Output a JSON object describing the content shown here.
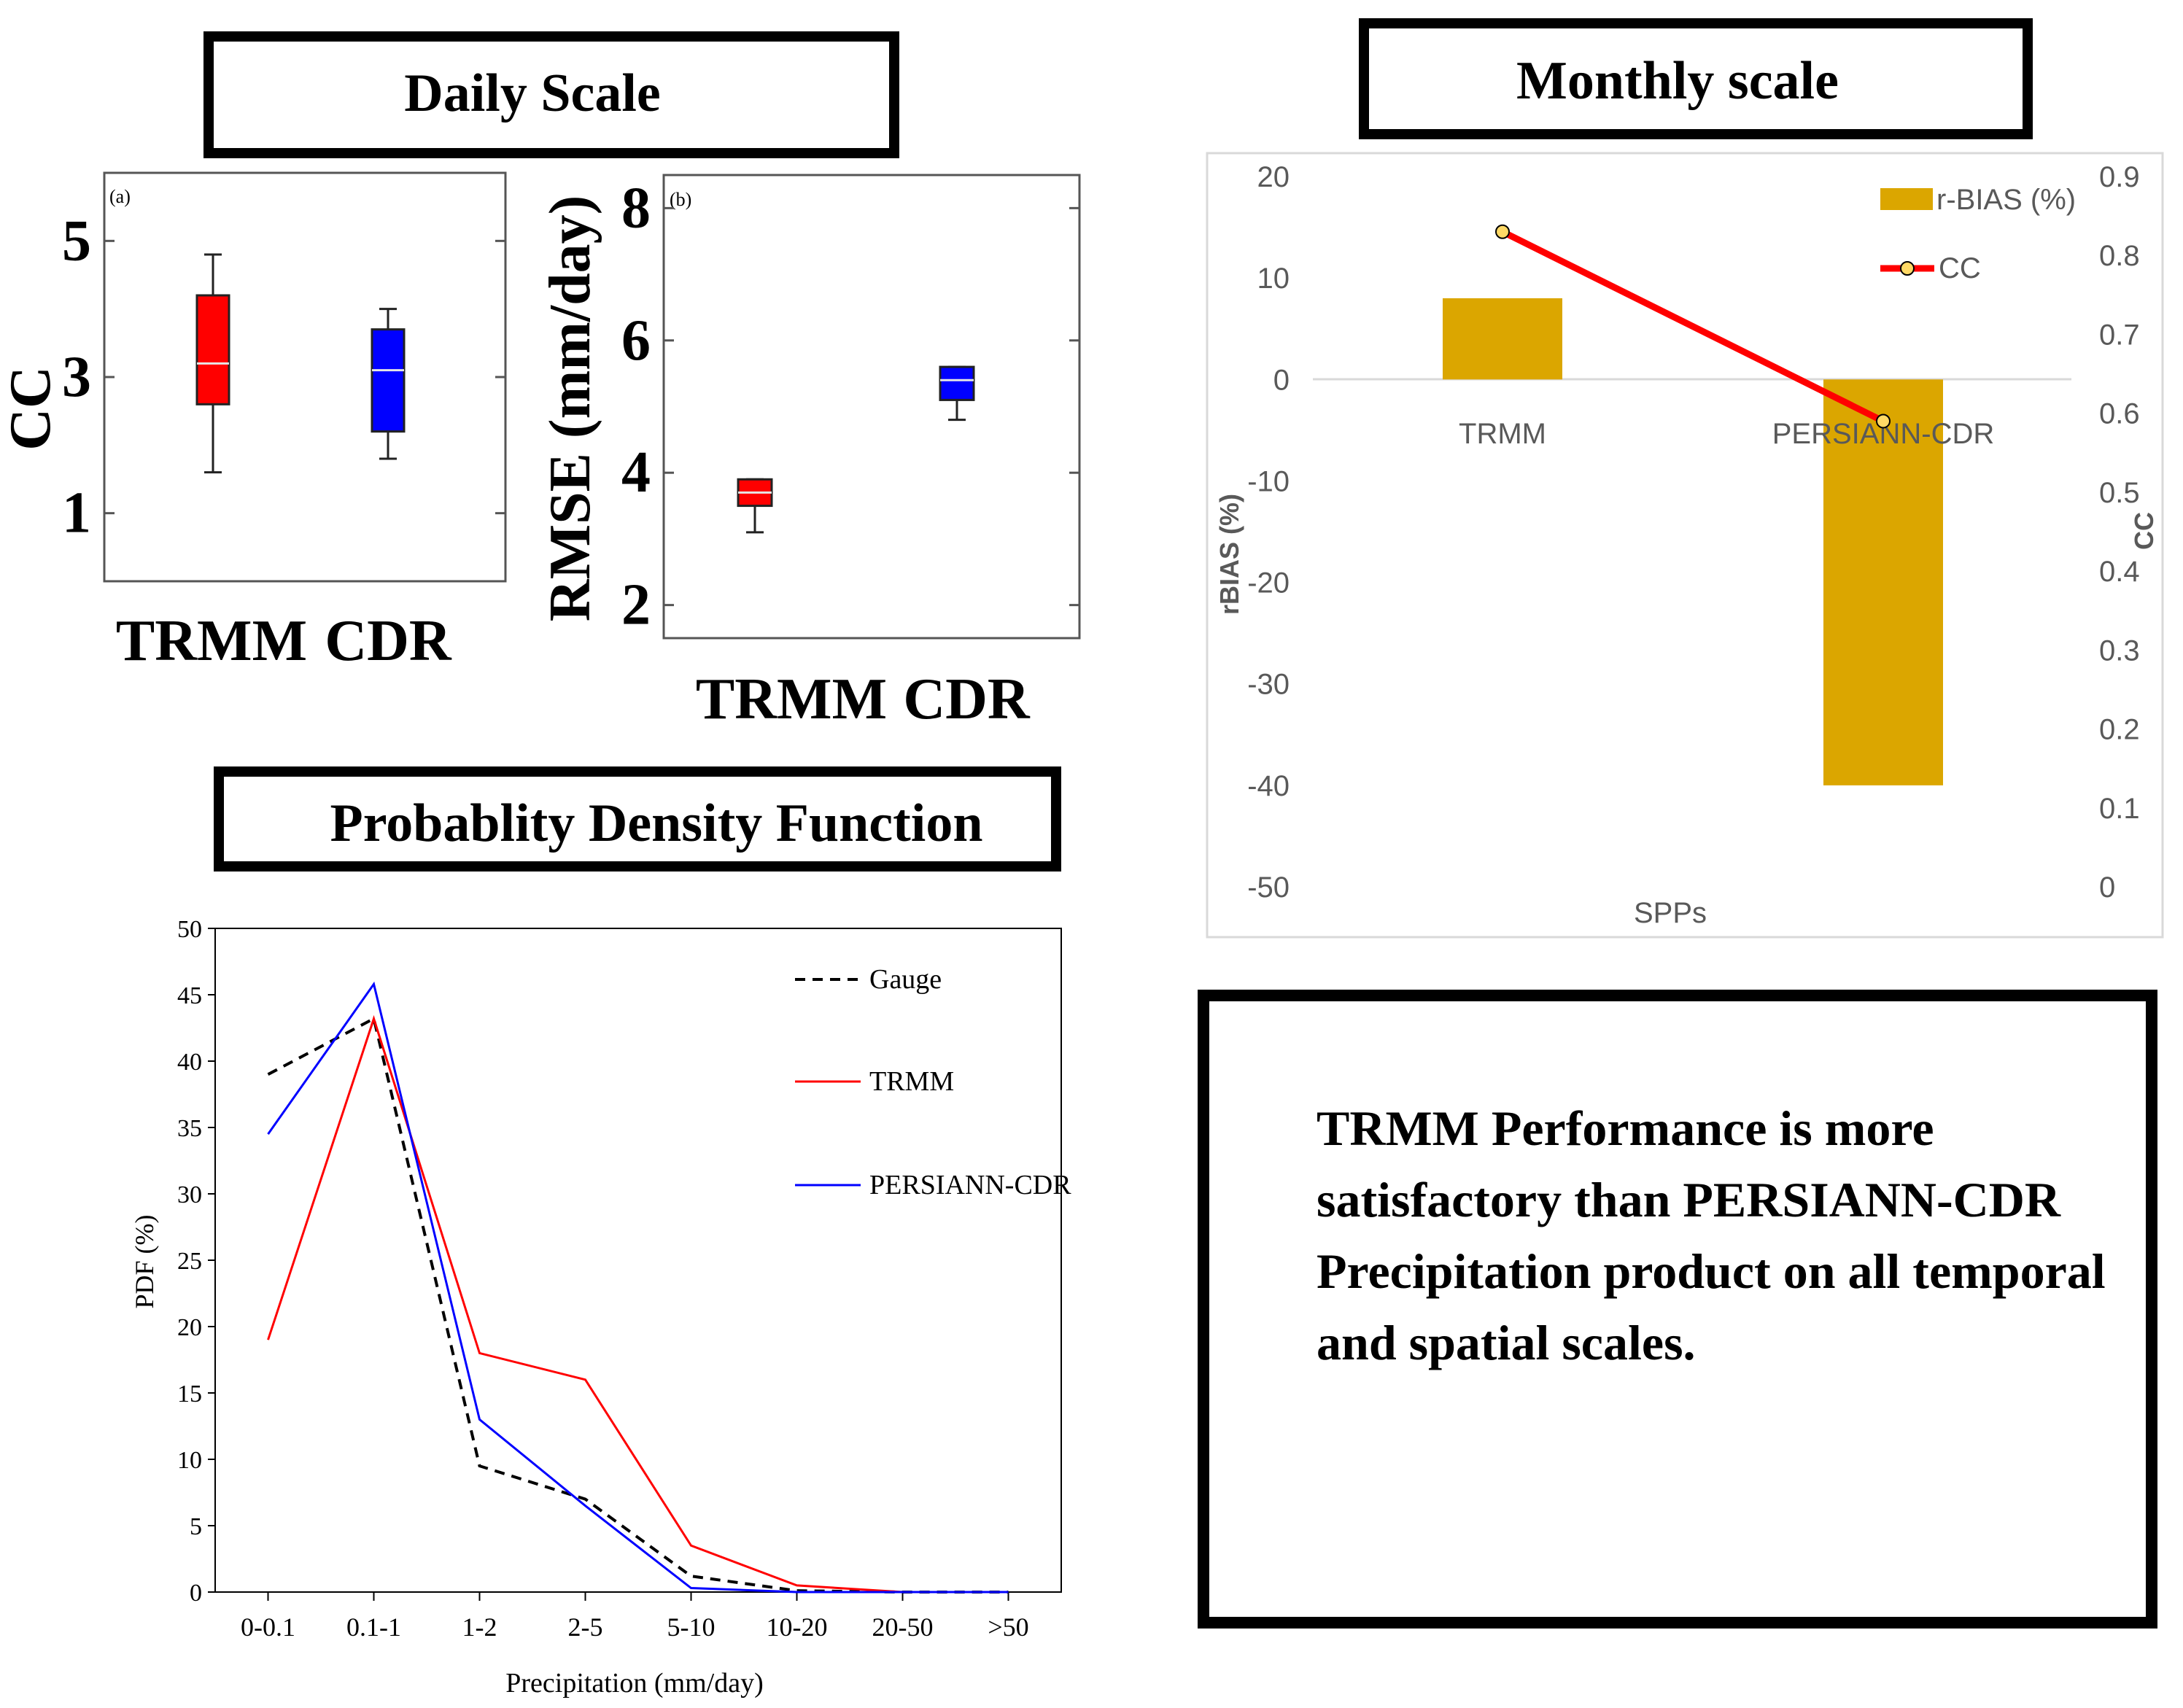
{
  "panels": {
    "daily_title": "Daily Scale",
    "monthly_title": "Monthly scale",
    "pdf_title": "Probablity Density Function",
    "conclusion": [
      "TRMM Performance is more",
      "satisfactory than PERSIANN-CDR",
      "Precipitation product on all temporal",
      "and spatial scales."
    ]
  },
  "colors": {
    "red": "#ff0000",
    "blue": "#0000ff",
    "gold": "#dba600",
    "black": "#000000"
  },
  "chart_data": [
    {
      "id": "cc_box",
      "type": "box",
      "panel_label": "(a)",
      "ylabel": "CC",
      "ylim": [
        0,
        6
      ],
      "yticks": [
        1,
        3,
        5
      ],
      "categories": [
        "TRMM",
        "CDR"
      ],
      "boxes": [
        {
          "name": "TRMM",
          "color": "#ff0000",
          "min": 1.6,
          "q1": 2.6,
          "median": 3.2,
          "q3": 4.2,
          "max": 4.8
        },
        {
          "name": "CDR",
          "color": "#0000ff",
          "min": 1.8,
          "q1": 2.2,
          "median": 3.1,
          "q3": 3.7,
          "max": 4.0
        }
      ]
    },
    {
      "id": "rmse_box",
      "type": "box",
      "panel_label": "(b)",
      "ylabel": "RMSE (mm/day)",
      "ylim": [
        1.5,
        8.5
      ],
      "yticks": [
        2,
        4,
        6,
        8
      ],
      "categories": [
        "TRMM",
        "CDR"
      ],
      "boxes": [
        {
          "name": "TRMM",
          "color": "#ff0000",
          "min": 3.1,
          "q1": 3.5,
          "median": 3.7,
          "q3": 3.9,
          "max": 3.9
        },
        {
          "name": "CDR",
          "color": "#0000ff",
          "min": 4.8,
          "q1": 5.1,
          "median": 5.4,
          "q3": 5.6,
          "max": 5.6
        }
      ]
    },
    {
      "id": "monthly_combo",
      "type": "bar+line",
      "xlabel": "SPPs",
      "ylabel": "rBIAS (%)",
      "y2label": "CC",
      "ylim": [
        -50,
        20
      ],
      "yticks": [
        20,
        10,
        0,
        -10,
        -20,
        -30,
        -40,
        -50
      ],
      "y2lim": [
        0,
        0.9
      ],
      "y2ticks": [
        0.9,
        0.8,
        0.7,
        0.6,
        0.5,
        0.4,
        0.3,
        0.2,
        0.1,
        0
      ],
      "categories": [
        "TRMM",
        "PERSIANN-CDR"
      ],
      "series": [
        {
          "name": "r-BIAS (%)",
          "kind": "bar",
          "axis": "left",
          "color": "#dba600",
          "values": [
            8,
            -40
          ]
        },
        {
          "name": "CC",
          "kind": "line",
          "axis": "right",
          "color": "#ff0000",
          "values": [
            0.83,
            0.59
          ]
        }
      ]
    },
    {
      "id": "pdf_line",
      "type": "line",
      "xlabel": "Precipitation (mm/day)",
      "ylabel": "PDF (%)",
      "ylim": [
        0,
        50
      ],
      "yticks": [
        0,
        5,
        10,
        15,
        20,
        25,
        30,
        35,
        40,
        45,
        50
      ],
      "categories": [
        "0-0.1",
        "0.1-1",
        "1-2",
        "2-5",
        "5-10",
        "10-20",
        "20-50",
        ">50"
      ],
      "series": [
        {
          "name": "Gauge",
          "color": "#000000",
          "dash": true,
          "values": [
            39,
            43.2,
            9.5,
            7,
            1.2,
            0.1,
            0,
            0
          ]
        },
        {
          "name": "TRMM",
          "color": "#ff0000",
          "dash": false,
          "values": [
            19,
            43.2,
            18,
            16,
            3.5,
            0.5,
            0,
            0
          ]
        },
        {
          "name": "PERSIANN-CDR",
          "color": "#0000ff",
          "dash": false,
          "values": [
            34.5,
            45.8,
            13,
            6.5,
            0.3,
            0,
            0,
            0
          ]
        }
      ]
    }
  ]
}
